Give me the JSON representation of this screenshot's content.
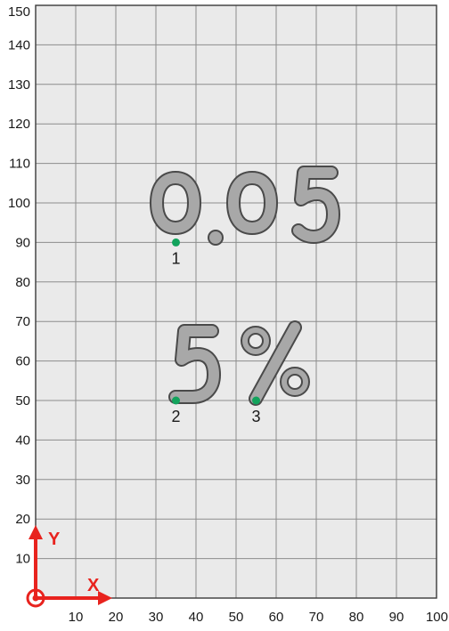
{
  "canvas": {
    "x_ticks": [
      "10",
      "20",
      "30",
      "40",
      "50",
      "60",
      "70",
      "80",
      "90",
      "100"
    ],
    "y_ticks": [
      "10",
      "20",
      "30",
      "40",
      "50",
      "60",
      "70",
      "80",
      "90",
      "100",
      "110",
      "120",
      "130",
      "140",
      "150"
    ],
    "grid_step": 10,
    "x_range": [
      0,
      100
    ],
    "y_range": [
      0,
      150
    ],
    "background_color": "#eaeaea",
    "grid_color": "#8c8c8c"
  },
  "axes": {
    "x_label": "X",
    "y_label": "Y",
    "color": "#e8231e"
  },
  "engraving": {
    "fill_color": "#a8a8a8",
    "outline_color": "#4a4a4a",
    "lines": [
      {
        "text": "0.05"
      },
      {
        "text": "5%"
      }
    ]
  },
  "reference_points": {
    "color": "#12a35c",
    "points": [
      {
        "label": "1",
        "x": 35,
        "y": 90
      },
      {
        "label": "2",
        "x": 35,
        "y": 50
      },
      {
        "label": "3",
        "x": 55,
        "y": 50
      }
    ]
  }
}
